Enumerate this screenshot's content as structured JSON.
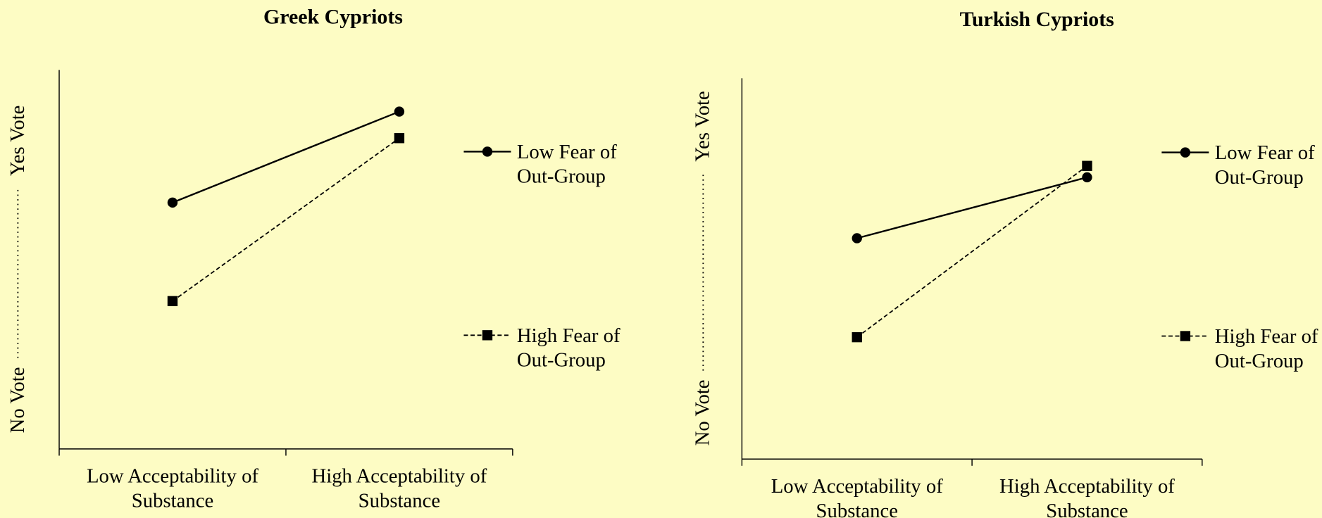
{
  "chart_data": [
    {
      "type": "line",
      "title": "Greek Cypriots",
      "categories": [
        "Low Acceptability of Substance",
        "High Acceptability of Substance"
      ],
      "y_axis_labels": [
        "No Vote",
        "Yes Vote"
      ],
      "ylim": [
        0,
        10
      ],
      "series": [
        {
          "name": "Low Fear of Out-Group",
          "color": "#000000",
          "marker": "circle",
          "dashed": false,
          "values": [
            6.5,
            8.9
          ]
        },
        {
          "name": "High Fear of Out-Group",
          "color": "#000000",
          "marker": "square",
          "dashed": true,
          "values": [
            3.9,
            8.2
          ]
        }
      ]
    },
    {
      "type": "line",
      "title": "Turkish Cypriots",
      "categories": [
        "Low Acceptability of Substance",
        "High Acceptability of Substance"
      ],
      "y_axis_labels": [
        "No Vote",
        "Yes Vote"
      ],
      "ylim": [
        0,
        10
      ],
      "series": [
        {
          "name": "Low Fear of Out-Group",
          "color": "#000000",
          "marker": "circle",
          "dashed": false,
          "values": [
            5.8,
            7.4
          ]
        },
        {
          "name": "High Fear of Out-Group",
          "color": "#000000",
          "marker": "square",
          "dashed": true,
          "values": [
            3.2,
            7.7
          ]
        }
      ]
    }
  ]
}
